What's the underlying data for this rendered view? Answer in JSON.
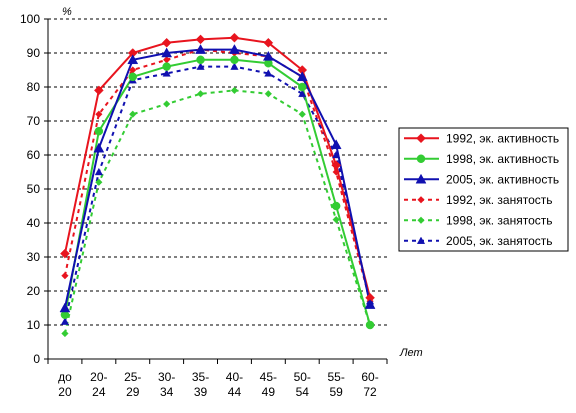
{
  "chart_data": {
    "type": "line",
    "ylabel": "%",
    "xlabel": "Лет",
    "ylim": [
      0,
      100
    ],
    "yticks": [
      0,
      10,
      20,
      30,
      40,
      50,
      60,
      70,
      80,
      90,
      100
    ],
    "categories": [
      [
        "до",
        "20"
      ],
      [
        "20-",
        "24"
      ],
      [
        "25-",
        "29"
      ],
      [
        "30-",
        "34"
      ],
      [
        "35-",
        "39"
      ],
      [
        "40-",
        "44"
      ],
      [
        "45-",
        "49"
      ],
      [
        "50-",
        "54"
      ],
      [
        "55-",
        "59"
      ],
      [
        "60-",
        "72"
      ]
    ],
    "grid": "horizontal-dashed",
    "legend_position": "right",
    "series": [
      {
        "name": "1992, эк. активность",
        "color": "#e8141e",
        "dash": "solid",
        "marker": "diamond",
        "values": [
          31,
          79,
          90,
          93,
          94,
          94.5,
          93,
          85,
          57,
          18
        ]
      },
      {
        "name": "1998, эк. активность",
        "color": "#33cc33",
        "dash": "solid",
        "marker": "circle",
        "values": [
          13,
          67,
          83,
          86,
          88,
          88,
          87,
          80,
          45,
          10
        ]
      },
      {
        "name": "2005, эк. активность",
        "color": "#1010b0",
        "dash": "solid",
        "marker": "triangle",
        "values": [
          15,
          62,
          88,
          90,
          91,
          91,
          89,
          83,
          63,
          16
        ]
      },
      {
        "name": "1992, эк. занятость",
        "color": "#e8141e",
        "dash": "dotted",
        "marker": "diamond",
        "values": [
          24.5,
          72,
          85,
          88,
          91,
          90,
          89,
          83,
          55,
          17
        ]
      },
      {
        "name": "1998, эк. занятость",
        "color": "#33cc33",
        "dash": "dotted",
        "marker": "diamond",
        "values": [
          7.5,
          52,
          72,
          75,
          78,
          79,
          78,
          72,
          41,
          10
        ]
      },
      {
        "name": "2005, эк. занятость",
        "color": "#1010b0",
        "dash": "dotted",
        "marker": "triangle",
        "values": [
          11,
          55,
          82,
          84,
          86,
          86,
          84,
          78,
          60,
          17
        ]
      }
    ]
  }
}
